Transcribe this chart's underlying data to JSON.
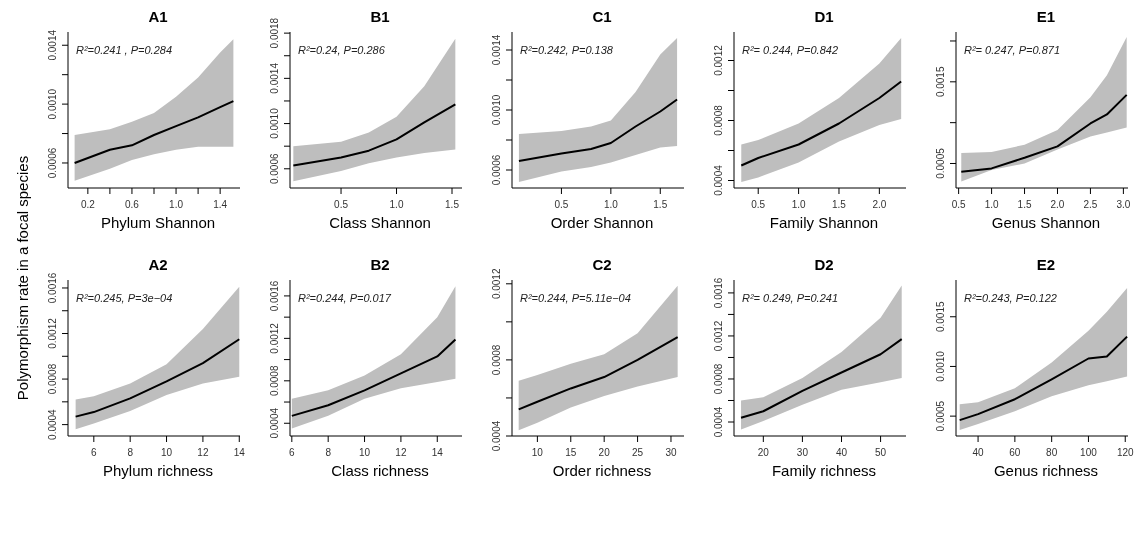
{
  "chart_data": [
    {
      "type": "line",
      "title": "A1",
      "xlabel": "Phylum Shannon",
      "ylabel": "Polymorphism rate in a focal species",
      "annotations": [
        "R²=0.241 , P=0.284"
      ],
      "x": [
        0.08,
        0.4,
        0.6,
        0.8,
        1.0,
        1.2,
        1.4,
        1.52
      ],
      "xlim": [
        0.02,
        1.58
      ],
      "ylim": [
        0.00043,
        0.00149
      ],
      "xticks": [
        0.2,
        {
          "value": 0.4,
          "label": null
        },
        0.6,
        {
          "value": 0.8,
          "label": null
        },
        {
          "value": 1.0,
          "label": "1.0"
        },
        {
          "value": 1.2,
          "label": null
        },
        1.4
      ],
      "yticks": [
        0.0006,
        {
          "value": 0.0008,
          "label": null
        },
        {
          "value": 0.001,
          "label": "0.0010"
        },
        {
          "value": 0.0012,
          "label": null
        },
        0.0014
      ],
      "series": [
        {
          "color": "#000000",
          "values": [
            0.0006,
            0.00069,
            0.00072,
            0.00079,
            0.00085,
            0.00091,
            0.00098,
            0.00102
          ],
          "lower": [
            0.00048,
            0.00056,
            0.00062,
            0.00066,
            0.00069,
            0.00071,
            0.00071,
            0.00071
          ],
          "upper": [
            0.00079,
            0.00083,
            0.00088,
            0.00094,
            0.00105,
            0.00118,
            0.00135,
            0.00144
          ]
        }
      ]
    },
    {
      "type": "line",
      "title": "B1",
      "xlabel": "Class Shannon",
      "annotations": [
        "R²=0.24, P=0.286"
      ],
      "x": [
        0.07,
        0.5,
        0.75,
        1.0,
        1.25,
        1.53
      ],
      "xlim": [
        0.04,
        1.59
      ],
      "ylim": [
        0.00043,
        0.00181
      ],
      "xticks": [
        0.5,
        {
          "value": 1.0,
          "label": "1.0"
        },
        1.5
      ],
      "yticks": [
        0.0006,
        {
          "value": 0.0008,
          "label": null
        },
        {
          "value": 0.001,
          "label": "0.0010"
        },
        {
          "value": 0.0012,
          "label": null
        },
        0.0014,
        {
          "value": 0.0016,
          "label": null
        },
        0.0018
      ],
      "series": [
        {
          "color": "#000000",
          "values": [
            0.00063,
            0.0007,
            0.00076,
            0.00086,
            0.00101,
            0.00117
          ],
          "lower": [
            0.00049,
            0.00058,
            0.00065,
            0.0007,
            0.00074,
            0.00077
          ],
          "upper": [
            0.0008,
            0.00084,
            0.00092,
            0.00106,
            0.00133,
            0.00175
          ]
        }
      ]
    },
    {
      "type": "line",
      "title": "C1",
      "xlabel": "Order Shannon",
      "annotations": [
        "R²=0.242, P=0.138"
      ],
      "x": [
        0.07,
        0.5,
        0.8,
        1.0,
        1.25,
        1.5,
        1.67
      ],
      "xlim": [
        0.0,
        1.74
      ],
      "ylim": [
        0.00048,
        0.00152
      ],
      "xticks": [
        0.5,
        {
          "value": 1.0,
          "label": "1.0"
        },
        1.5
      ],
      "yticks": [
        0.0006,
        {
          "value": 0.0008,
          "label": null
        },
        {
          "value": 0.001,
          "label": "0.0010"
        },
        {
          "value": 0.0012,
          "label": null
        },
        0.0014
      ],
      "series": [
        {
          "color": "#000000",
          "values": [
            0.00066,
            0.00071,
            0.00074,
            0.00078,
            0.00089,
            0.00099,
            0.00107
          ],
          "lower": [
            0.00052,
            0.00059,
            0.00062,
            0.00065,
            0.0007,
            0.00075,
            0.00076
          ],
          "upper": [
            0.00084,
            0.00086,
            0.00089,
            0.00093,
            0.00112,
            0.00137,
            0.00148
          ]
        }
      ]
    },
    {
      "type": "line",
      "title": "D1",
      "xlabel": "Family Shannon",
      "annotations": [
        "R²= 0.244, P=0.842"
      ],
      "x": [
        0.29,
        0.5,
        1.0,
        1.5,
        2.0,
        2.27
      ],
      "xlim": [
        0.2,
        2.33
      ],
      "ylim": [
        0.00035,
        0.00139
      ],
      "xticks": [
        0.5,
        {
          "value": 1.0,
          "label": "1.0"
        },
        1.5,
        {
          "value": 2.0,
          "label": "2.0"
        }
      ],
      "yticks": [
        0.0004,
        {
          "value": 0.0006,
          "label": null
        },
        0.0008,
        {
          "value": 0.001,
          "label": null
        },
        0.0012
      ],
      "series": [
        {
          "color": "#000000",
          "values": [
            0.0005,
            0.00055,
            0.00064,
            0.00078,
            0.00095,
            0.00106
          ],
          "lower": [
            0.00039,
            0.00042,
            0.00052,
            0.00066,
            0.00077,
            0.00081
          ],
          "upper": [
            0.00064,
            0.00067,
            0.00078,
            0.00095,
            0.00118,
            0.00135
          ]
        }
      ]
    },
    {
      "type": "line",
      "title": "E1",
      "xlabel": "Genus Shannon",
      "annotations": [
        "R²= 0.247, P=0.871"
      ],
      "x": [
        0.54,
        1.0,
        1.5,
        2.0,
        2.5,
        2.75,
        3.05
      ],
      "xlim": [
        0.46,
        3.07
      ],
      "ylim": [
        0.0002,
        0.00211
      ],
      "xticks": [
        0.5,
        {
          "value": 1.0,
          "label": "1.0"
        },
        1.5,
        {
          "value": 2.0,
          "label": "2.0"
        },
        2.5,
        {
          "value": 3.0,
          "label": "3.0"
        }
      ],
      "yticks": [
        0.0005,
        {
          "value": 0.001,
          "label": null
        },
        0.0015,
        {
          "value": 0.002,
          "label": null
        }
      ],
      "series": [
        {
          "color": "#000000",
          "values": [
            0.0004,
            0.00044,
            0.00057,
            0.00071,
            0.00099,
            0.0011,
            0.00134
          ],
          "lower": [
            0.00028,
            0.00042,
            0.0005,
            0.00067,
            0.00083,
            0.00088,
            0.00094
          ],
          "upper": [
            0.00063,
            0.00064,
            0.00073,
            0.00091,
            0.00131,
            0.00158,
            0.00205
          ]
        }
      ]
    },
    {
      "type": "line",
      "title": "A2",
      "xlabel": "Phylum richness",
      "annotations": [
        "R²=0.245, P=3e−04"
      ],
      "x": [
        5,
        6,
        8,
        10,
        12,
        14
      ],
      "xlim": [
        4.58,
        14.04
      ],
      "ylim": [
        0.0003,
        0.00167
      ],
      "xticks": [
        6,
        8,
        10,
        12,
        14
      ],
      "yticks": [
        0.0004,
        {
          "value": 0.0006,
          "label": null
        },
        0.0008,
        {
          "value": 0.001,
          "label": null
        },
        0.0012,
        {
          "value": 0.0014,
          "label": null
        },
        0.0016
      ],
      "series": [
        {
          "color": "#000000",
          "values": [
            0.00047,
            0.00051,
            0.00063,
            0.00078,
            0.00094,
            0.00115
          ],
          "lower": [
            0.00036,
            0.00041,
            0.00052,
            0.00066,
            0.00076,
            0.00082
          ],
          "upper": [
            0.00062,
            0.00065,
            0.00076,
            0.00093,
            0.00124,
            0.00161
          ]
        }
      ]
    },
    {
      "type": "line",
      "title": "B2",
      "xlabel": "Class richness",
      "annotations": [
        "R²=0.244, P=0.017"
      ],
      "x": [
        6,
        8,
        10,
        12,
        14,
        15
      ],
      "xlim": [
        5.9,
        15.36
      ],
      "ylim": [
        0.00028,
        0.00175
      ],
      "xticks": [
        6,
        8,
        10,
        12,
        14
      ],
      "yticks": [
        0.0004,
        {
          "value": 0.0006,
          "label": null
        },
        0.0008,
        {
          "value": 0.001,
          "label": null
        },
        0.0012,
        {
          "value": 0.0014,
          "label": null
        },
        0.0016
      ],
      "series": [
        {
          "color": "#000000",
          "values": [
            0.00047,
            0.00057,
            0.00071,
            0.00087,
            0.00103,
            0.00119
          ],
          "lower": [
            0.00035,
            0.00047,
            0.00063,
            0.00073,
            0.00079,
            0.00082
          ],
          "upper": [
            0.00063,
            0.00071,
            0.00085,
            0.00105,
            0.0014,
            0.00169
          ]
        }
      ]
    },
    {
      "type": "line",
      "title": "C2",
      "xlabel": "Order richness",
      "annotations": [
        "R²=0.244, P=5.11e−04"
      ],
      "x": [
        7.2,
        10,
        15,
        20,
        25,
        31
      ],
      "xlim": [
        6.2,
        31.95
      ],
      "ylim": [
        0.0004,
        0.00122
      ],
      "xticks": [
        10,
        15,
        20,
        25,
        30
      ],
      "yticks": [
        0.0004,
        {
          "value": 0.0006,
          "label": null
        },
        0.0008,
        {
          "value": 0.001,
          "label": null
        },
        0.0012
      ],
      "series": [
        {
          "color": "#000000",
          "values": [
            0.00054,
            0.00058,
            0.00065,
            0.00071,
            0.0008,
            0.00092
          ],
          "lower": [
            0.00043,
            0.00047,
            0.00055,
            0.00061,
            0.00066,
            0.00071
          ],
          "upper": [
            0.00069,
            0.00072,
            0.00078,
            0.00083,
            0.00094,
            0.00119
          ]
        }
      ]
    },
    {
      "type": "line",
      "title": "D2",
      "xlabel": "Family richness",
      "annotations": [
        "R²= 0.249, P=0.241"
      ],
      "x": [
        14.3,
        20,
        30,
        40,
        50,
        55.4
      ],
      "xlim": [
        12.5,
        56.5
      ],
      "ylim": [
        0.00027,
        0.00172
      ],
      "xticks": [
        20,
        30,
        40,
        50
      ],
      "yticks": [
        0.0004,
        {
          "value": 0.0006,
          "label": null
        },
        0.0008,
        {
          "value": 0.001,
          "label": null
        },
        0.0012,
        {
          "value": 0.0014,
          "label": null
        },
        0.0016
      ],
      "series": [
        {
          "color": "#000000",
          "values": [
            0.00044,
            0.0005,
            0.00069,
            0.00086,
            0.00103,
            0.00117
          ],
          "lower": [
            0.00033,
            0.00041,
            0.00056,
            0.0007,
            0.00077,
            0.00081
          ],
          "upper": [
            0.0006,
            0.00063,
            0.00081,
            0.00105,
            0.00137,
            0.00167
          ]
        }
      ]
    },
    {
      "type": "line",
      "title": "E2",
      "xlabel": "Genus richness",
      "annotations": [
        "R²=0.243, P=0.122"
      ],
      "x": [
        30,
        40,
        60,
        80,
        100,
        110,
        121
      ],
      "xlim": [
        28,
        121.5
      ],
      "ylim": [
        0.0003,
        0.00187
      ],
      "xticks": [
        40,
        60,
        80,
        100,
        120
      ],
      "yticks": [
        0.0005,
        {
          "value": 0.001,
          "label": "0.0010"
        },
        0.0015
      ],
      "series": [
        {
          "color": "#000000",
          "values": [
            0.00046,
            0.00052,
            0.00067,
            0.00087,
            0.00108,
            0.0011,
            0.0013
          ],
          "lower": [
            0.00036,
            0.00042,
            0.00055,
            0.0007,
            0.00081,
            0.00085,
            0.0009
          ],
          "upper": [
            0.00062,
            0.00064,
            0.00078,
            0.00104,
            0.00136,
            0.00155,
            0.00179
          ]
        }
      ]
    }
  ]
}
